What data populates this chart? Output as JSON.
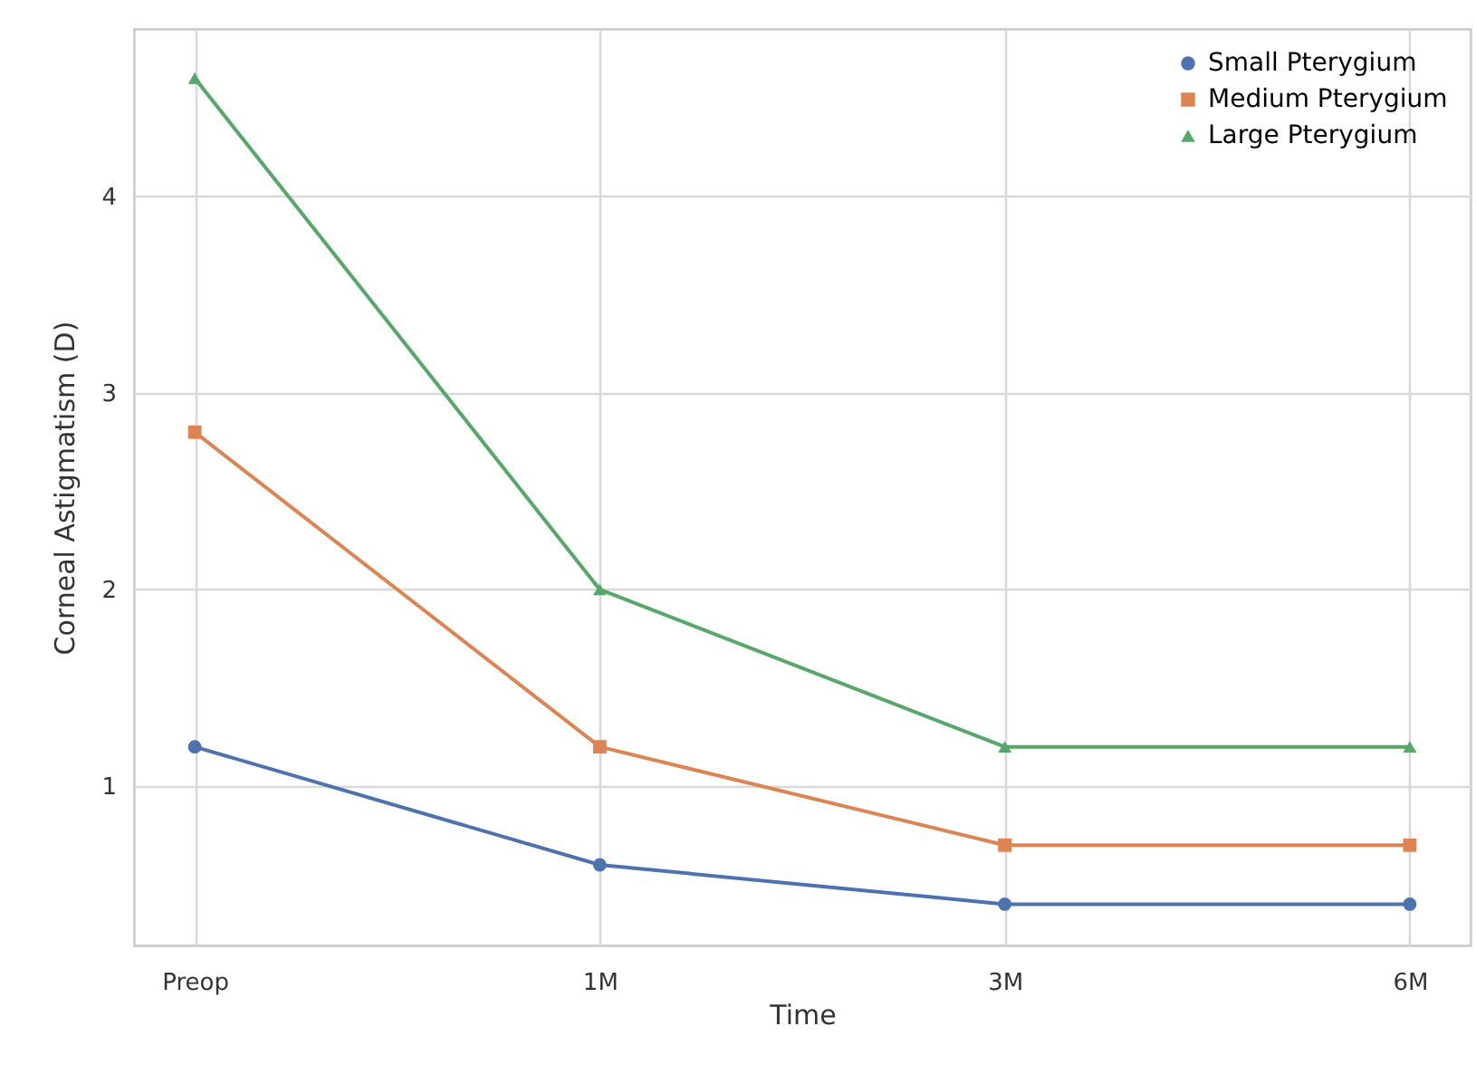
{
  "chart_data": {
    "type": "line",
    "xlabel": "Time",
    "ylabel": "Corneal Astigmatism (D)",
    "categories": [
      "Preop",
      "1M",
      "3M",
      "6M"
    ],
    "series": [
      {
        "name": "Small Pterygium",
        "color": "#4c72b0",
        "marker": "circle",
        "values": [
          1.2,
          0.6,
          0.4,
          0.4
        ]
      },
      {
        "name": "Medium Pterygium",
        "color": "#dd8452",
        "marker": "square",
        "values": [
          2.8,
          1.2,
          0.7,
          0.7
        ]
      },
      {
        "name": "Large Pterygium",
        "color": "#55a868",
        "marker": "triangle",
        "values": [
          4.6,
          2.0,
          1.2,
          1.2
        ]
      }
    ],
    "ylim": [
      0.19,
      4.85
    ],
    "yticks": [
      1,
      2,
      3,
      4
    ],
    "grid": true,
    "legend": "top right",
    "line_style": "solid"
  }
}
